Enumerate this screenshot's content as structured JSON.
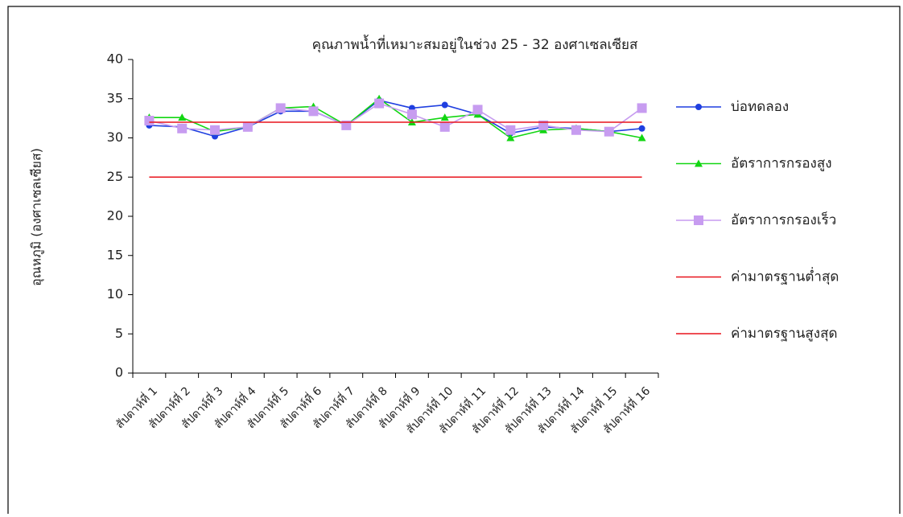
{
  "chart_data": {
    "type": "line",
    "title": "คุณภาพน้ำที่เหมาะสมอยู่ในช่วง 25 - 32 องศาเซลเซียส",
    "y_label": "อุณหภูมิ (องศาเซลเซียส)",
    "categories": [
      "สัปดาห์ที่ 1",
      "สัปดาห์ที่ 2",
      "สัปดาห์ที่ 3",
      "สัปดาห์ที่ 4",
      "สัปดาห์ที่ 5",
      "สัปดาห์ที่ 6",
      "สัปดาห์ที่ 7",
      "สัปดาห์ที่ 8",
      "สัปดาห์ที่ 9",
      "สัปดาห์ที่ 10",
      "สัปดาห์ที่ 11",
      "สัปดาห์ที่ 12",
      "สัปดาห์ที่ 13",
      "สัปดาห์ที่ 14",
      "สัปดาห์ที่ 15",
      "สัปดาห์ที่ 16"
    ],
    "series": [
      {
        "name": "บ่อทดลอง",
        "color": "#1f3fe0",
        "marker": "circle",
        "values": [
          31.6,
          31.4,
          30.2,
          31.4,
          33.4,
          33.4,
          31.6,
          34.8,
          33.8,
          34.2,
          33.0,
          30.6,
          31.4,
          31.2,
          30.8,
          31.2
        ]
      },
      {
        "name": "อัตราการกรองสูง",
        "color": "#12d612",
        "marker": "triangle",
        "values": [
          32.6,
          32.6,
          30.8,
          31.4,
          33.8,
          34.0,
          31.6,
          35.0,
          32.0,
          32.6,
          33.0,
          30.0,
          31.0,
          31.2,
          30.8,
          30.0
        ]
      },
      {
        "name": "อัตราการกรองเร็ว",
        "color": "#c79cf0",
        "marker": "square",
        "values": [
          32.2,
          31.2,
          31.0,
          31.4,
          33.8,
          33.4,
          31.6,
          34.4,
          33.0,
          31.4,
          33.6,
          31.0,
          31.6,
          31.0,
          30.8,
          33.8
        ]
      },
      {
        "name": "ค่ามาตรฐานต่ำสุด",
        "color": "#e8141c",
        "marker": "none",
        "values": [
          25,
          25,
          25,
          25,
          25,
          25,
          25,
          25,
          25,
          25,
          25,
          25,
          25,
          25,
          25,
          25
        ]
      },
      {
        "name": "ค่ามาตรฐานสูงสุด",
        "color": "#e8141c",
        "marker": "none",
        "values": [
          32,
          32,
          32,
          32,
          32,
          32,
          32,
          32,
          32,
          32,
          32,
          32,
          32,
          32,
          32,
          32
        ]
      }
    ],
    "ylim": [
      0,
      40
    ],
    "yticks": [
      0,
      5,
      10,
      15,
      20,
      25,
      30,
      35,
      40
    ],
    "legend": "right"
  }
}
